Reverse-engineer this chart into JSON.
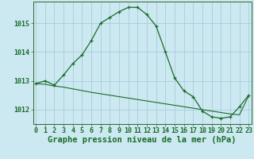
{
  "title": "Graphe pression niveau de la mer (hPa)",
  "background_color": "#cce8f0",
  "grid_color": "#aaccdd",
  "line_color": "#1a6b2a",
  "spine_color": "#336633",
  "x_values": [
    0,
    1,
    2,
    3,
    4,
    5,
    6,
    7,
    8,
    9,
    10,
    11,
    12,
    13,
    14,
    15,
    16,
    17,
    18,
    19,
    20,
    21,
    22,
    23
  ],
  "line1": [
    1012.9,
    1013.0,
    1012.85,
    1013.2,
    1013.6,
    1013.9,
    1014.4,
    1015.0,
    1015.2,
    1015.4,
    1015.55,
    1015.55,
    1015.3,
    1014.9,
    1014.0,
    1013.1,
    1012.65,
    1012.45,
    1011.95,
    1011.75,
    1011.7,
    1011.75,
    1012.1,
    1012.5
  ],
  "line2": [
    1012.9,
    1012.88,
    1012.82,
    1012.78,
    1012.72,
    1012.66,
    1012.6,
    1012.55,
    1012.5,
    1012.45,
    1012.4,
    1012.35,
    1012.3,
    1012.25,
    1012.2,
    1012.15,
    1012.1,
    1012.05,
    1012.0,
    1011.95,
    1011.9,
    1011.85,
    1011.82,
    1012.48
  ],
  "ylim": [
    1011.5,
    1015.75
  ],
  "yticks": [
    1012,
    1013,
    1014,
    1015
  ],
  "xticks": [
    0,
    1,
    2,
    3,
    4,
    5,
    6,
    7,
    8,
    9,
    10,
    11,
    12,
    13,
    14,
    15,
    16,
    17,
    18,
    19,
    20,
    21,
    22,
    23
  ],
  "title_fontsize": 7.5,
  "tick_fontsize": 6.0,
  "marker": "+"
}
